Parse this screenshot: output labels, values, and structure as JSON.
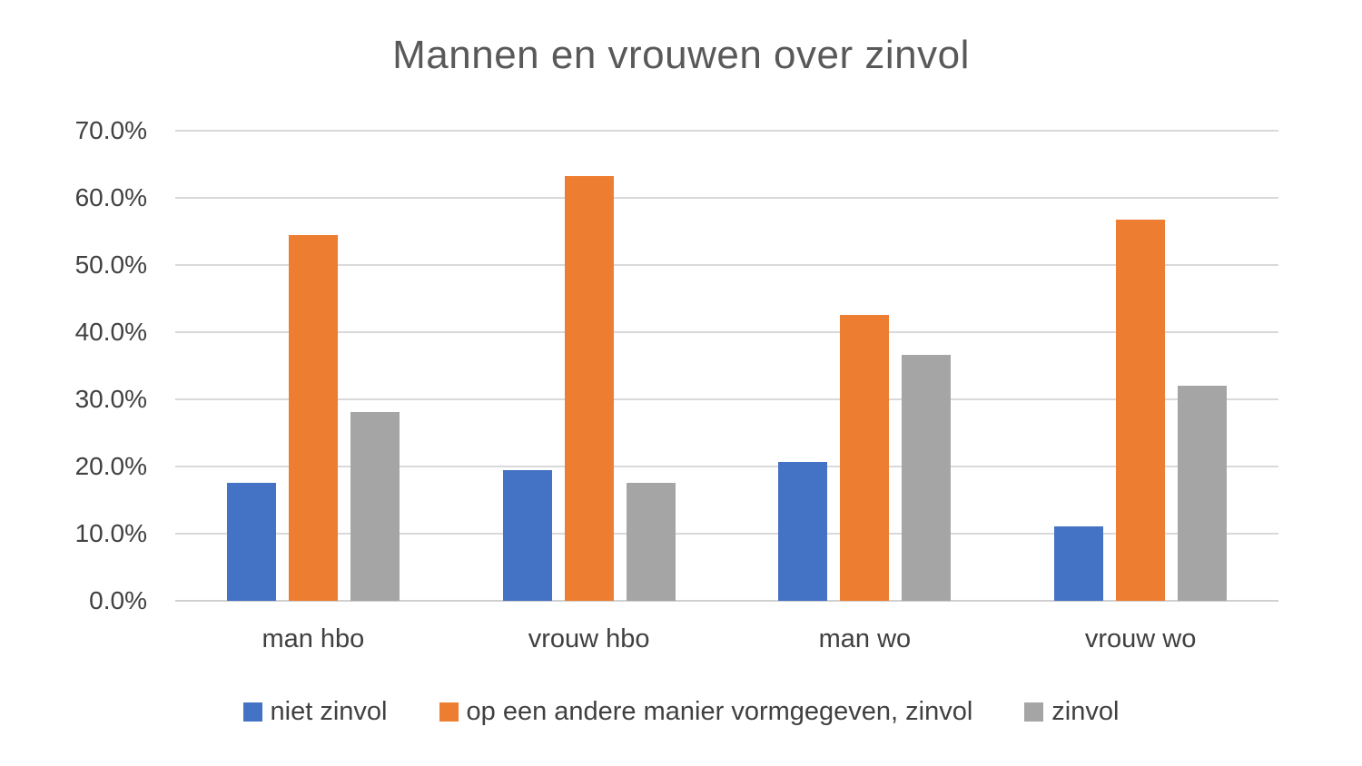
{
  "chart_data": {
    "type": "bar",
    "title": "Mannen en vrouwen over zinvol",
    "categories": [
      "man hbo",
      "vrouw hbo",
      "man wo",
      "vrouw wo"
    ],
    "series": [
      {
        "name": "niet zinvol",
        "color": "#4472C4",
        "values": [
          17.6,
          19.4,
          20.7,
          11.1
        ]
      },
      {
        "name": "op een andere manier vormgegeven, zinvol",
        "color": "#ED7D31",
        "values": [
          54.4,
          63.2,
          42.6,
          56.8
        ]
      },
      {
        "name": "zinvol",
        "color": "#A5A5A5",
        "values": [
          28.1,
          17.6,
          36.6,
          32.0
        ]
      }
    ],
    "xlabel": "",
    "ylabel": "",
    "ylim": [
      0,
      70
    ],
    "ytick_step": 10,
    "ytick_labels": [
      "0.0%",
      "10.0%",
      "20.0%",
      "30.0%",
      "40.0%",
      "50.0%",
      "60.0%",
      "70.0%"
    ],
    "grid": true,
    "legend_position": "bottom"
  },
  "colors": {
    "background": "#FFFFFF",
    "gridline": "#D9D9D9",
    "baseline": "#D0D0D0",
    "title_text": "#595959",
    "axis_text": "#404040"
  }
}
